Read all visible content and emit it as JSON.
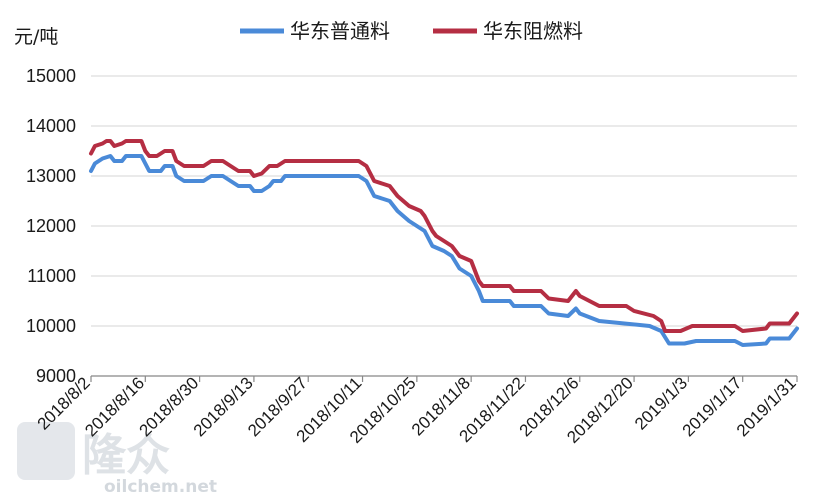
{
  "chart_data": {
    "type": "line",
    "unit_label": "元/吨",
    "ylim": [
      9000,
      15000
    ],
    "yticks": [
      9000,
      10000,
      11000,
      12000,
      13000,
      14000,
      15000
    ],
    "xticks": [
      "2018/8/2",
      "2018/8/16",
      "2018/8/30",
      "2018/9/13",
      "2018/9/27",
      "2018/10/11",
      "2018/10/25",
      "2018/11/8",
      "2018/11/22",
      "2018/12/6",
      "2018/12/20",
      "2019/1/3",
      "2019/1/17",
      "2019/1/31"
    ],
    "grid": "horizontal",
    "legend_position": "top",
    "series": [
      {
        "name": "华东普通料",
        "color": "#4a8ad8",
        "points": [
          [
            "2018/8/2",
            13100
          ],
          [
            "2018/8/3",
            13250
          ],
          [
            "2018/8/5",
            13350
          ],
          [
            "2018/8/7",
            13400
          ],
          [
            "2018/8/8",
            13300
          ],
          [
            "2018/8/10",
            13300
          ],
          [
            "2018/8/11",
            13400
          ],
          [
            "2018/8/15",
            13400
          ],
          [
            "2018/8/16",
            13250
          ],
          [
            "2018/8/17",
            13100
          ],
          [
            "2018/8/20",
            13100
          ],
          [
            "2018/8/21",
            13200
          ],
          [
            "2018/8/23",
            13200
          ],
          [
            "2018/8/24",
            13000
          ],
          [
            "2018/8/26",
            12900
          ],
          [
            "2018/8/31",
            12900
          ],
          [
            "2018/9/2",
            13000
          ],
          [
            "2018/9/5",
            13000
          ],
          [
            "2018/9/7",
            12900
          ],
          [
            "2018/9/9",
            12800
          ],
          [
            "2018/9/12",
            12800
          ],
          [
            "2018/9/13",
            12700
          ],
          [
            "2018/9/15",
            12700
          ],
          [
            "2018/9/17",
            12800
          ],
          [
            "2018/9/18",
            12900
          ],
          [
            "2018/9/20",
            12900
          ],
          [
            "2018/9/21",
            13000
          ],
          [
            "2018/10/10",
            13000
          ],
          [
            "2018/10/12",
            12900
          ],
          [
            "2018/10/14",
            12600
          ],
          [
            "2018/10/18",
            12500
          ],
          [
            "2018/10/20",
            12300
          ],
          [
            "2018/10/23",
            12100
          ],
          [
            "2018/10/27",
            11900
          ],
          [
            "2018/10/29",
            11600
          ],
          [
            "2018/11/1",
            11500
          ],
          [
            "2018/11/3",
            11400
          ],
          [
            "2018/11/5",
            11150
          ],
          [
            "2018/11/8",
            11000
          ],
          [
            "2018/11/10",
            10700
          ],
          [
            "2018/11/11",
            10500
          ],
          [
            "2018/11/18",
            10500
          ],
          [
            "2018/11/19",
            10400
          ],
          [
            "2018/11/26",
            10400
          ],
          [
            "2018/11/28",
            10250
          ],
          [
            "2018/12/3",
            10200
          ],
          [
            "2018/12/5",
            10350
          ],
          [
            "2018/12/6",
            10250
          ],
          [
            "2018/12/11",
            10100
          ],
          [
            "2018/12/24",
            10000
          ],
          [
            "2018/12/27",
            9900
          ],
          [
            "2018/12/29",
            9650
          ],
          [
            "2019/1/2",
            9650
          ],
          [
            "2019/1/5",
            9700
          ],
          [
            "2019/1/15",
            9700
          ],
          [
            "2019/1/17",
            9620
          ],
          [
            "2019/1/23",
            9650
          ],
          [
            "2019/1/24",
            9750
          ],
          [
            "2019/1/29",
            9750
          ],
          [
            "2019/1/31",
            9950
          ]
        ]
      },
      {
        "name": "华东阻燃料",
        "color": "#b52e43",
        "points": [
          [
            "2018/8/2",
            13450
          ],
          [
            "2018/8/3",
            13600
          ],
          [
            "2018/8/5",
            13650
          ],
          [
            "2018/8/6",
            13700
          ],
          [
            "2018/8/7",
            13700
          ],
          [
            "2018/8/8",
            13600
          ],
          [
            "2018/8/10",
            13650
          ],
          [
            "2018/8/11",
            13700
          ],
          [
            "2018/8/15",
            13700
          ],
          [
            "2018/8/16",
            13500
          ],
          [
            "2018/8/17",
            13400
          ],
          [
            "2018/8/19",
            13400
          ],
          [
            "2018/8/21",
            13500
          ],
          [
            "2018/8/23",
            13500
          ],
          [
            "2018/8/24",
            13300
          ],
          [
            "2018/8/26",
            13200
          ],
          [
            "2018/8/31",
            13200
          ],
          [
            "2018/9/2",
            13300
          ],
          [
            "2018/9/5",
            13300
          ],
          [
            "2018/9/7",
            13200
          ],
          [
            "2018/9/9",
            13100
          ],
          [
            "2018/9/12",
            13100
          ],
          [
            "2018/9/13",
            13000
          ],
          [
            "2018/9/15",
            13050
          ],
          [
            "2018/9/17",
            13200
          ],
          [
            "2018/9/19",
            13200
          ],
          [
            "2018/9/21",
            13300
          ],
          [
            "2018/10/10",
            13300
          ],
          [
            "2018/10/12",
            13200
          ],
          [
            "2018/10/14",
            12900
          ],
          [
            "2018/10/18",
            12800
          ],
          [
            "2018/10/20",
            12600
          ],
          [
            "2018/10/23",
            12400
          ],
          [
            "2018/10/26",
            12300
          ],
          [
            "2018/10/27",
            12200
          ],
          [
            "2018/10/29",
            11900
          ],
          [
            "2018/10/30",
            11800
          ],
          [
            "2018/11/1",
            11700
          ],
          [
            "2018/11/3",
            11600
          ],
          [
            "2018/11/5",
            11400
          ],
          [
            "2018/11/8",
            11300
          ],
          [
            "2018/11/10",
            10900
          ],
          [
            "2018/11/11",
            10800
          ],
          [
            "2018/11/18",
            10800
          ],
          [
            "2018/11/19",
            10700
          ],
          [
            "2018/11/26",
            10700
          ],
          [
            "2018/11/28",
            10550
          ],
          [
            "2018/12/3",
            10500
          ],
          [
            "2018/12/5",
            10700
          ],
          [
            "2018/12/6",
            10600
          ],
          [
            "2018/12/11",
            10400
          ],
          [
            "2018/12/18",
            10400
          ],
          [
            "2018/12/20",
            10300
          ],
          [
            "2018/12/25",
            10200
          ],
          [
            "2018/12/27",
            10100
          ],
          [
            "2018/12/28",
            9900
          ],
          [
            "2019/1/1",
            9900
          ],
          [
            "2019/1/4",
            10000
          ],
          [
            "2019/1/15",
            10000
          ],
          [
            "2019/1/17",
            9900
          ],
          [
            "2019/1/23",
            9950
          ],
          [
            "2019/1/24",
            10050
          ],
          [
            "2019/1/29",
            10050
          ],
          [
            "2019/1/31",
            10250
          ]
        ]
      }
    ]
  },
  "watermark": {
    "cn": "隆众",
    "en": "oilchem.net"
  }
}
